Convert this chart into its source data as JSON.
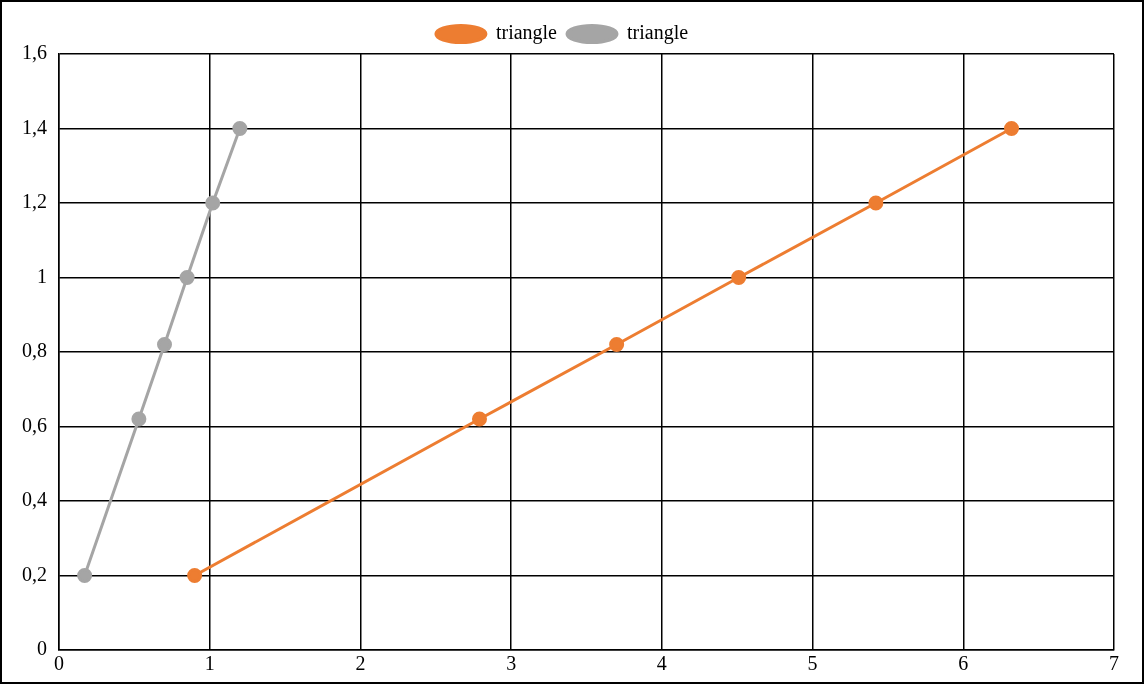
{
  "chart_data": {
    "type": "line",
    "xlim": [
      0,
      7
    ],
    "xticks": [
      0,
      1,
      2,
      3,
      4,
      5,
      6,
      7
    ],
    "ylim": [
      0,
      1.6
    ],
    "yticks": [
      {
        "value": 0,
        "label": "0"
      },
      {
        "value": 0.2,
        "label": "0,2"
      },
      {
        "value": 0.4,
        "label": "0,4"
      },
      {
        "value": 0.6,
        "label": "0,6"
      },
      {
        "value": 0.8,
        "label": "0,8"
      },
      {
        "value": 1,
        "label": "1"
      },
      {
        "value": 1.2,
        "label": "1,2"
      },
      {
        "value": 1.4,
        "label": "1,4"
      },
      {
        "value": 1.6,
        "label": "1,6"
      }
    ],
    "grid": true,
    "legend": "top",
    "marker": "circle",
    "line_style": "solid",
    "series": [
      {
        "name": "triangle",
        "color": "#ed7d31",
        "x": [
          0.9,
          2.79,
          3.7,
          4.51,
          5.42,
          6.32
        ],
        "values": [
          0.2,
          0.62,
          0.82,
          1.0,
          1.2,
          1.4
        ]
      },
      {
        "name": "triangle",
        "color": "#a5a5a5",
        "x": [
          0.17,
          0.53,
          0.7,
          0.85,
          1.02,
          1.2
        ],
        "values": [
          0.2,
          0.62,
          0.82,
          1.0,
          1.2,
          1.4
        ]
      }
    ]
  }
}
